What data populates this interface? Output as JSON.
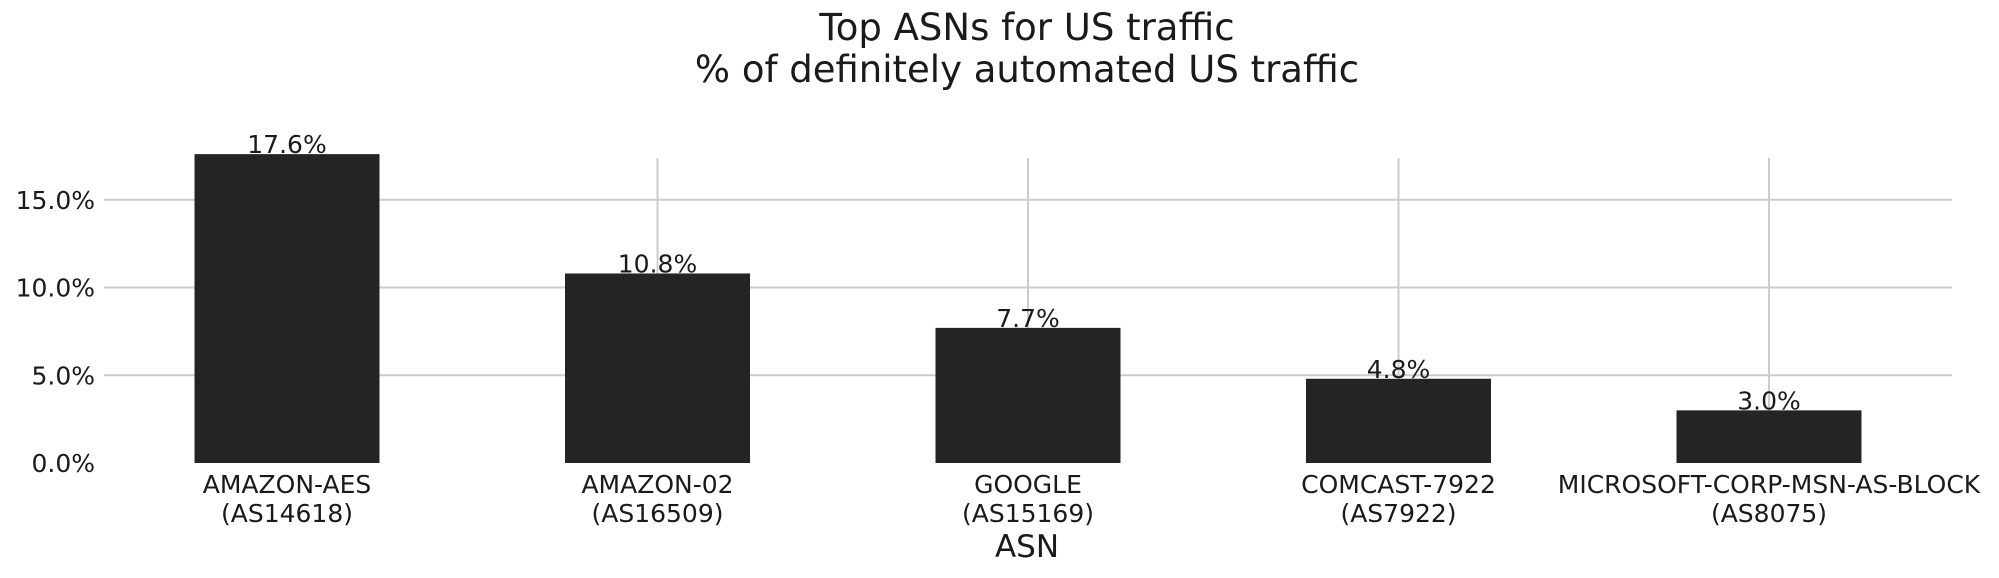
{
  "chart_data": {
    "type": "bar",
    "title": "Top ASNs for US traffic",
    "subtitle": "% of definitely automated US traffic",
    "xlabel": "ASN",
    "ylabel": "",
    "categories": [
      [
        "AMAZON-AES",
        "(AS14618)"
      ],
      [
        "AMAZON-02",
        "(AS16509)"
      ],
      [
        "GOOGLE",
        "(AS15169)"
      ],
      [
        "COMCAST-7922",
        "(AS7922)"
      ],
      [
        "MICROSOFT-CORP-MSN-AS-BLOCK",
        "(AS8075)"
      ]
    ],
    "values": [
      17.6,
      10.8,
      7.7,
      4.8,
      3.0
    ],
    "value_labels": [
      "17.6%",
      "10.8%",
      "7.7%",
      "4.8%",
      "3.0%"
    ],
    "ylim": [
      0,
      18
    ],
    "yticks": [
      0,
      5,
      10,
      15
    ],
    "ytick_labels": [
      "0.0%",
      "5.0%",
      "10.0%",
      "15.0%"
    ],
    "grid": true,
    "bar_color": "#252422",
    "grid_color": "#cccccc"
  }
}
